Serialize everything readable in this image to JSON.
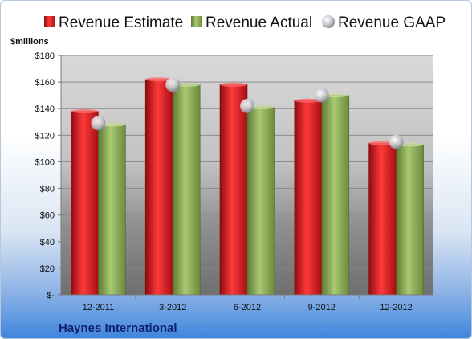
{
  "chart_data": {
    "type": "bar",
    "categories": [
      "12-2011",
      "3-2012",
      "6-2012",
      "9-2012",
      "12-2012"
    ],
    "series": [
      {
        "name": "Revenue Estimate",
        "kind": "bar",
        "color": "#d8141f",
        "values": [
          138,
          162,
          158,
          146,
          114
        ]
      },
      {
        "name": "Revenue Actual",
        "kind": "bar",
        "color": "#8aae52",
        "values": [
          128,
          158,
          141,
          150,
          113
        ]
      },
      {
        "name": "Revenue GAAP",
        "kind": "marker",
        "color": "#c8c8d0",
        "values": [
          129,
          158,
          142,
          150,
          115
        ]
      }
    ],
    "ylabel": "$millions",
    "ylim": [
      0,
      180
    ],
    "yticks": [
      {
        "value": 0,
        "label": "$-"
      },
      {
        "value": 20,
        "label": "$20"
      },
      {
        "value": 40,
        "label": "$40"
      },
      {
        "value": 60,
        "label": "$60"
      },
      {
        "value": 80,
        "label": "$80"
      },
      {
        "value": 100,
        "label": "$100"
      },
      {
        "value": 120,
        "label": "$120"
      },
      {
        "value": 140,
        "label": "$140"
      },
      {
        "value": 160,
        "label": "$160"
      },
      {
        "value": 180,
        "label": "$180"
      }
    ],
    "grid": true,
    "legend_position": "top"
  },
  "company": "Haynes International"
}
